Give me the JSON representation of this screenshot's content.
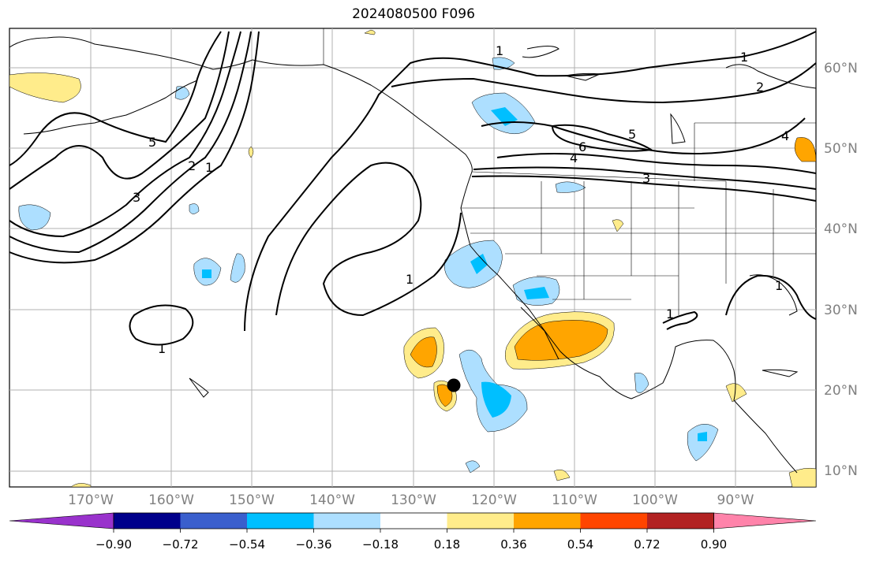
{
  "title": "2024080500 F096",
  "lat_labels": [
    "60°N",
    "50°N",
    "40°N",
    "30°N",
    "20°N",
    "10°N"
  ],
  "lon_labels": [
    "170°W",
    "160°W",
    "150°W",
    "140°W",
    "130°W",
    "120°W",
    "110°W",
    "100°W",
    "90°W"
  ],
  "colorbar": {
    "ticks": [
      "−0.90",
      "−0.72",
      "−0.54",
      "−0.36",
      "−0.18",
      "0.18",
      "0.36",
      "0.54",
      "0.72",
      "0.90"
    ],
    "colors": [
      "#9932cc",
      "#00008b",
      "#3a5fcd",
      "#00bfff",
      "#addfff",
      "#ffffff",
      "#ffec8b",
      "#ffa500",
      "#ff4500",
      "#b22222",
      "#ff83aa"
    ]
  },
  "contour_labels": [
    "5",
    "2",
    "1",
    "3",
    "1",
    "1",
    "6",
    "5",
    "4",
    "3",
    "2",
    "4",
    "1",
    "1",
    "1",
    "1"
  ],
  "marker": "storm-center-dot"
}
